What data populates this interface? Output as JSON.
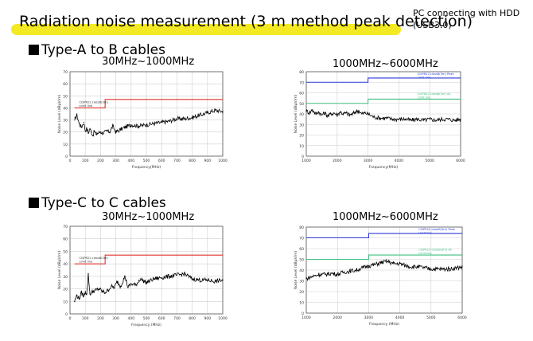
{
  "header": {
    "title": "Radiation noise measurement (3 m method peak detection)",
    "note_line1": "PC connecting with HDD",
    "note_line2": "(USB3.0)"
  },
  "sections": [
    {
      "label": "Type-A to B cables"
    },
    {
      "label": "Type-C to C cables"
    }
  ],
  "chart_titles": [
    "30MHz~1000MHz",
    "1000MHz~6000MHz",
    "30MHz~1000MHz",
    "1000MHz~6000MHz"
  ],
  "colors": {
    "limit_b": "#e0322b",
    "limit_a": "#3fbf7f",
    "peak_limit": "#2b3bd6",
    "noise": "#000000",
    "highlight": "#f4ea24"
  },
  "chart_data": [
    {
      "type": "line",
      "title": "30MHz~1000MHz",
      "xlabel": "Frequency(MHz)",
      "ylabel": "Noise Level (dBµV/m)",
      "xlim": [
        0,
        1000
      ],
      "ylim": [
        0,
        70
      ],
      "xticks": [
        0,
        100,
        200,
        300,
        400,
        500,
        600,
        700,
        800,
        900,
        1000
      ],
      "yticks": [
        0,
        10,
        20,
        30,
        40,
        50,
        60,
        70
      ],
      "grid": true,
      "limit_label": "CISPR22 classB(3m) Limit line",
      "limit": {
        "x": [
          30,
          230,
          230,
          1000
        ],
        "y": [
          40,
          40,
          47,
          47
        ]
      },
      "series": [
        {
          "x": [
            30,
            45,
            60,
            75,
            90,
            100,
            110,
            120,
            130,
            140,
            150,
            160,
            170,
            180,
            200,
            220,
            240,
            260,
            280,
            300,
            330,
            360,
            400,
            450,
            500,
            550,
            600,
            650,
            700,
            750,
            800,
            850,
            900,
            950,
            1000
          ],
          "y": [
            30,
            34,
            27,
            24,
            28,
            21,
            23,
            19,
            23,
            20,
            17,
            21,
            18,
            19,
            20,
            19,
            21,
            20,
            25,
            20,
            22,
            24,
            26,
            25,
            26,
            27,
            28,
            29,
            31,
            31,
            32,
            34,
            36,
            38,
            37
          ]
        }
      ]
    },
    {
      "type": "line",
      "title": "1000MHz~6000MHz",
      "xlabel": "Frequency(MHz)",
      "ylabel": "Noise Level (dBµV/m)",
      "xlim": [
        1000,
        6000
      ],
      "ylim": [
        0,
        80
      ],
      "xticks": [
        1000,
        2000,
        3000,
        4000,
        5000,
        6000
      ],
      "yticks": [
        0,
        10,
        20,
        30,
        40,
        50,
        60,
        70,
        80
      ],
      "grid": true,
      "peak_limit_label": "CISPR22 classB(3m) Peak Limit line",
      "peak_limit": {
        "x": [
          1000,
          3000,
          3000,
          6000
        ],
        "y": [
          70,
          70,
          74,
          74
        ]
      },
      "limit_label": "CISPR22 classB(3m) Av Limit line",
      "limit": {
        "x": [
          1000,
          3000,
          3000,
          6000
        ],
        "y": [
          50,
          50,
          54,
          54
        ]
      },
      "series": [
        {
          "x": [
            1000,
            1100,
            1200,
            1300,
            1400,
            1500,
            1600,
            1700,
            1800,
            1900,
            2000,
            2100,
            2200,
            2300,
            2400,
            2500,
            2600,
            2700,
            2800,
            2900,
            3000,
            3200,
            3400,
            3600,
            3800,
            4000,
            4200,
            4400,
            4600,
            4800,
            5000,
            5200,
            5400,
            5600,
            5800,
            6000
          ],
          "y": [
            43,
            41,
            44,
            40,
            42,
            39,
            41,
            38,
            40,
            41,
            39,
            42,
            40,
            41,
            39,
            40,
            42,
            43,
            40,
            41,
            40,
            37,
            36,
            36,
            35,
            35,
            35,
            34,
            35,
            34,
            35,
            34,
            35,
            35,
            34,
            35
          ]
        }
      ]
    },
    {
      "type": "line",
      "title": "30MHz~1000MHz",
      "xlabel": "Frequency (MHz)",
      "ylabel": "Noise Level (dBµV/m)",
      "xlim": [
        0,
        1000
      ],
      "ylim": [
        0,
        70
      ],
      "xticks": [
        0,
        100,
        200,
        300,
        400,
        500,
        600,
        700,
        800,
        900,
        1000
      ],
      "yticks": [
        0,
        10,
        20,
        30,
        40,
        50,
        60,
        70
      ],
      "grid": true,
      "limit_label": "CISPR22 classB(3m) Limit line",
      "limit": {
        "x": [
          30,
          230,
          230,
          1000
        ],
        "y": [
          40,
          40,
          47,
          47
        ]
      },
      "series": [
        {
          "x": [
            30,
            45,
            60,
            75,
            90,
            100,
            110,
            120,
            130,
            140,
            150,
            170,
            190,
            210,
            230,
            250,
            270,
            290,
            310,
            330,
            360,
            380,
            400,
            430,
            460,
            500,
            550,
            600,
            650,
            700,
            750,
            800,
            850,
            900,
            950,
            1000
          ],
          "y": [
            10,
            15,
            12,
            17,
            14,
            18,
            16,
            32,
            16,
            17,
            18,
            19,
            20,
            18,
            17,
            19,
            22,
            21,
            26,
            22,
            30,
            21,
            24,
            23,
            28,
            25,
            28,
            29,
            30,
            31,
            32,
            28,
            27,
            27,
            26,
            27
          ]
        }
      ]
    },
    {
      "type": "line",
      "title": "1000MHz~6000MHz",
      "xlabel": "Frequency (MHz)",
      "ylabel": "Noise Level (dBµV/m)",
      "xlim": [
        1000,
        6000
      ],
      "ylim": [
        0,
        80
      ],
      "xticks": [
        1000,
        2000,
        3000,
        4000,
        5000,
        6000
      ],
      "yticks": [
        0,
        10,
        20,
        30,
        40,
        50,
        60,
        70,
        80
      ],
      "grid": true,
      "peak_limit_label": "CISPR22 classB(3m) Peak Limit line",
      "peak_limit": {
        "x": [
          1000,
          3000,
          3000,
          6000
        ],
        "y": [
          70,
          70,
          74,
          74
        ]
      },
      "limit_label": "CISPR22 classB(3m) Av Limit line",
      "limit": {
        "x": [
          1000,
          3000,
          3000,
          6000
        ],
        "y": [
          50,
          50,
          54,
          54
        ]
      },
      "series": [
        {
          "x": [
            1000,
            1200,
            1400,
            1600,
            1800,
            2000,
            2200,
            2400,
            2600,
            2800,
            3000,
            3200,
            3400,
            3600,
            3800,
            4000,
            4200,
            4400,
            4600,
            4800,
            5000,
            5200,
            5400,
            5600,
            5800,
            6000
          ],
          "y": [
            32,
            34,
            36,
            36,
            37,
            36,
            38,
            39,
            40,
            42,
            44,
            45,
            47,
            48,
            46,
            46,
            44,
            43,
            43,
            42,
            41,
            41,
            41,
            41,
            42,
            43
          ]
        }
      ]
    }
  ]
}
